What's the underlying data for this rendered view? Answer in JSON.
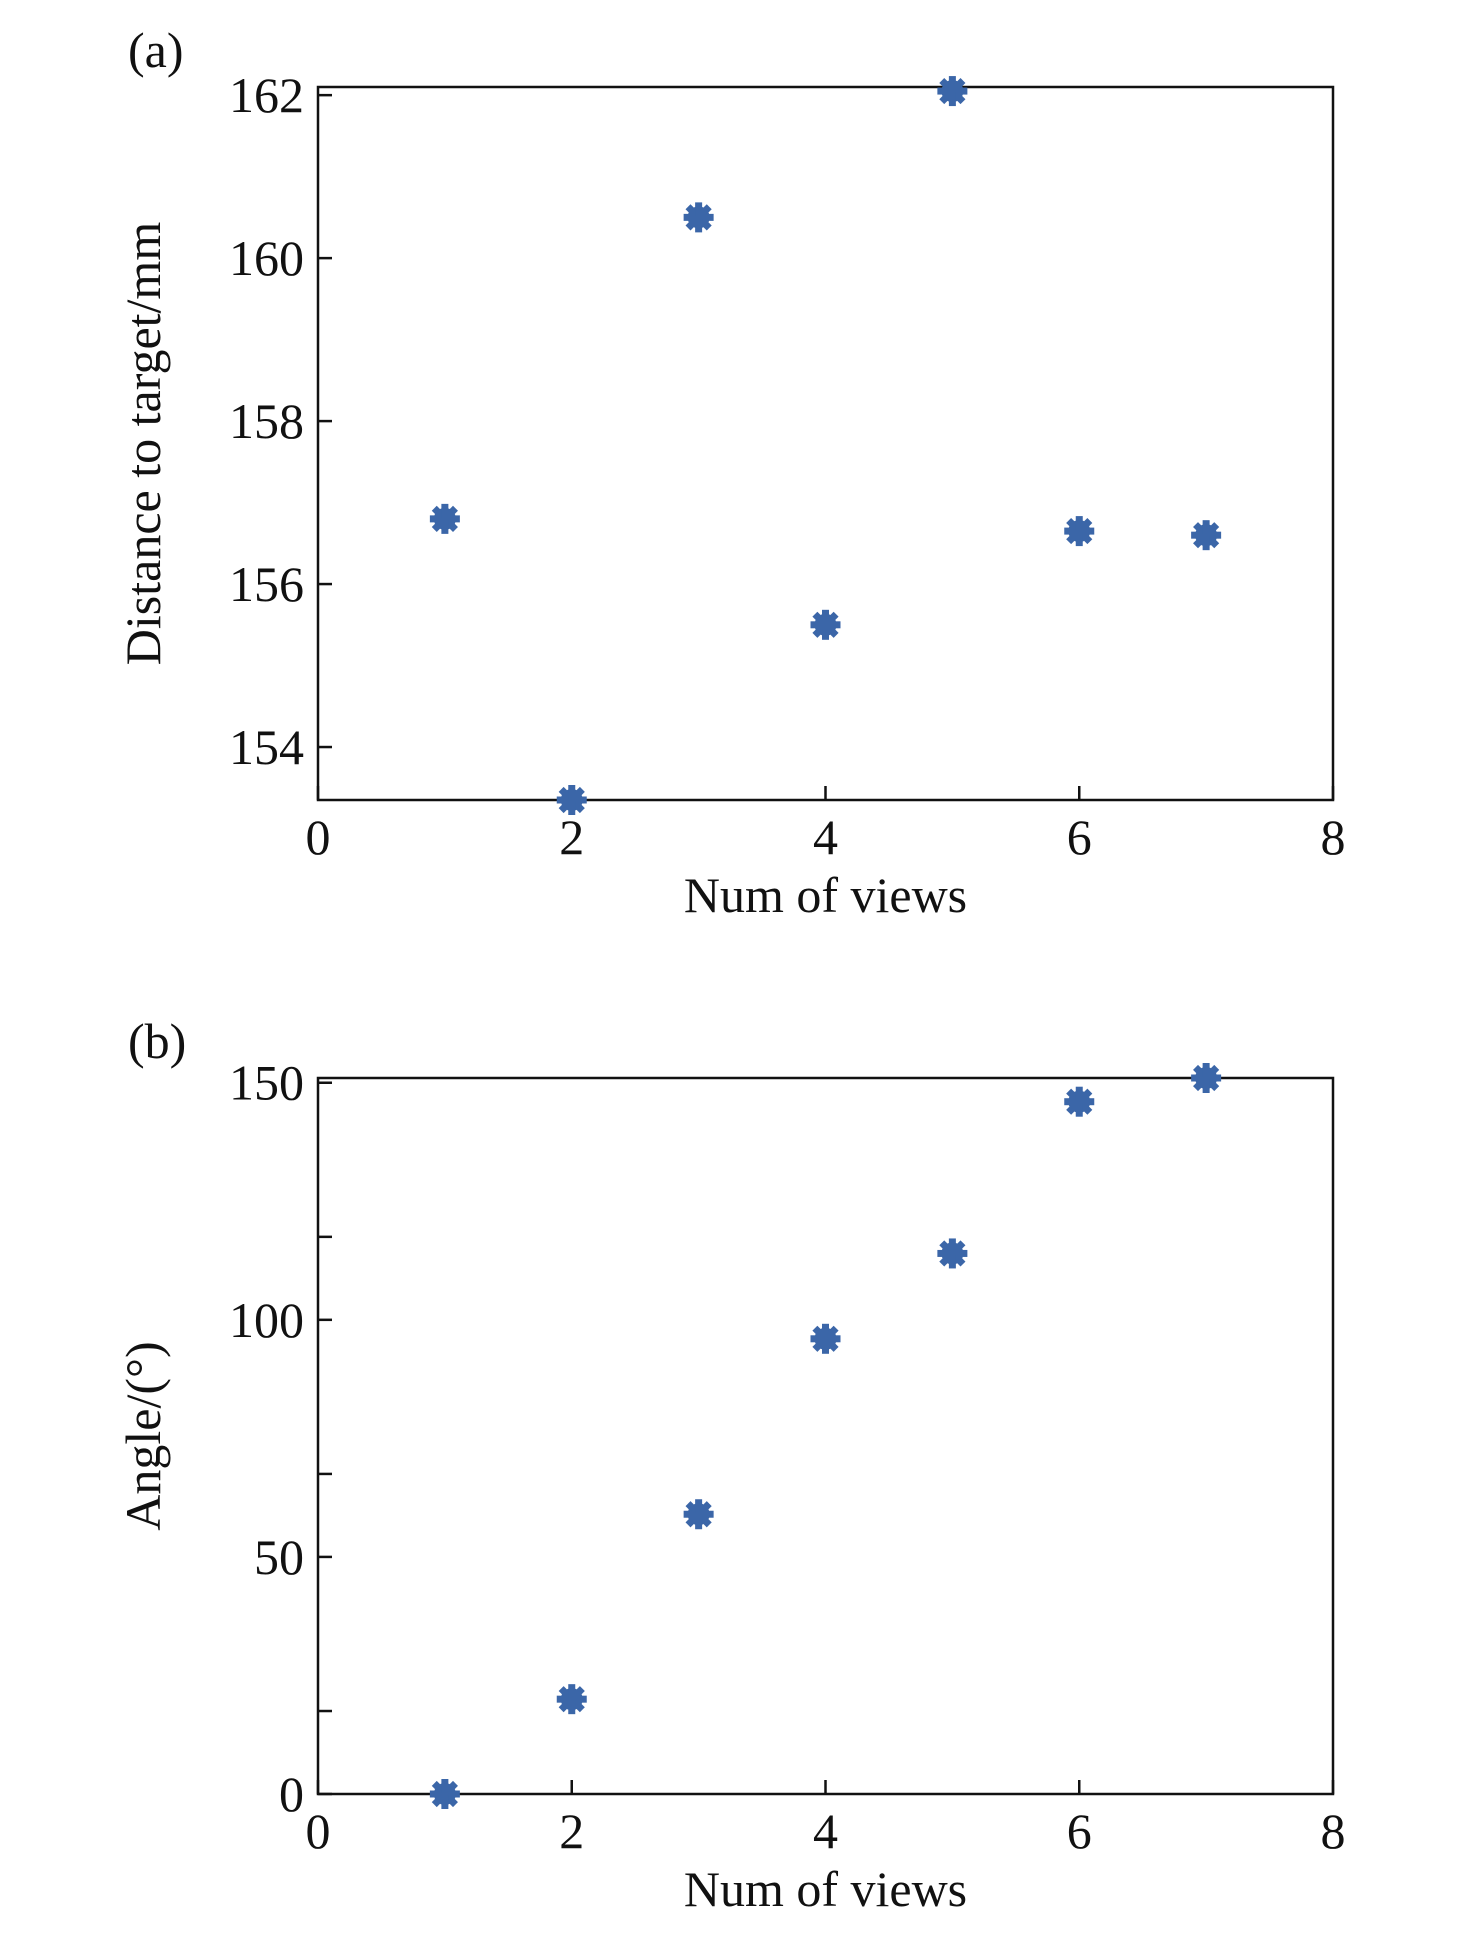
{
  "chart_data": [
    {
      "type": "scatter",
      "panel_label": "(a)",
      "xlabel": "Num of views",
      "ylabel": "Distance to target/mm",
      "xlim": [
        0,
        8
      ],
      "ylim": [
        153.35,
        162.1
      ],
      "xticks": [
        0,
        2,
        4,
        6,
        8
      ],
      "yticks": [
        154,
        156,
        158,
        160,
        162
      ],
      "x": [
        1,
        2,
        3,
        4,
        5,
        6,
        7
      ],
      "y": [
        156.8,
        153.35,
        160.5,
        155.5,
        162.05,
        156.65,
        156.6
      ],
      "marker_color": "#3b66a8",
      "grid": false,
      "legend": "none"
    },
    {
      "type": "scatter",
      "panel_label": "(b)",
      "xlabel": "Num of views",
      "ylabel": "Angle/(°)",
      "xlim": [
        0,
        8
      ],
      "ylim": [
        0,
        151
      ],
      "xticks": [
        0,
        2,
        4,
        6,
        8
      ],
      "yticks": [
        0,
        50,
        100,
        150
      ],
      "minor_yticks": [
        17.5,
        67.5,
        117.5
      ],
      "x": [
        1,
        2,
        3,
        4,
        5,
        6,
        7
      ],
      "y": [
        0,
        20,
        59,
        96,
        114,
        146,
        151
      ],
      "marker_color": "#3b66a8",
      "grid": false,
      "legend": "none"
    }
  ]
}
